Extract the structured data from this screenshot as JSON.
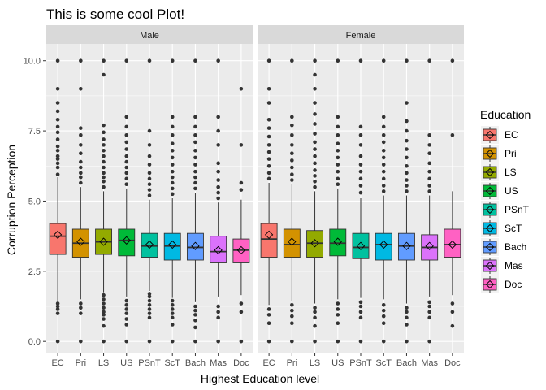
{
  "chart_data": {
    "type": "boxplot",
    "title": "This is some cool Plot!",
    "xlabel": "Highest Education level",
    "ylabel": "Corruption Perception",
    "ylim": [
      -0.4,
      10.6
    ],
    "yticks": [
      "0.0",
      "2.5",
      "5.0",
      "7.5",
      "10.0"
    ],
    "ytick_values": [
      0,
      2.5,
      5,
      7.5,
      10
    ],
    "categories": [
      "EC",
      "Pri",
      "LS",
      "US",
      "PSnT",
      "ScT",
      "Bach",
      "Mas",
      "Doc"
    ],
    "legend": {
      "title": "Education",
      "position": "right",
      "entries": [
        "EC",
        "Pri",
        "LS",
        "US",
        "PSnT",
        "ScT",
        "Bach",
        "Mas",
        "Doc"
      ]
    },
    "colors": [
      "#F8766D",
      "#D39200",
      "#93AA00",
      "#00BA38",
      "#00C19F",
      "#00B9E3",
      "#619CFF",
      "#DB72FB",
      "#FF61C3"
    ],
    "grid": true,
    "panels": [
      {
        "name": "Male",
        "boxes": [
          {
            "category": "EC",
            "q1": 3.1,
            "median": 3.75,
            "q3": 4.2,
            "whisker_low": 1.4,
            "whisker_high": 5.85,
            "mean": 3.8,
            "outliers": [
              0.0,
              1.0,
              1.15,
              1.25,
              1.35,
              5.95,
              6.2,
              6.35,
              6.5,
              6.6,
              6.8,
              6.95,
              7.2,
              7.45,
              7.65,
              7.9,
              8.2,
              8.5,
              9.0,
              10.0
            ]
          },
          {
            "category": "Pri",
            "q1": 3.0,
            "median": 3.5,
            "q3": 4.0,
            "whisker_low": 1.5,
            "whisker_high": 5.5,
            "mean": 3.55,
            "outliers": [
              0.0,
              1.0,
              1.2,
              1.35,
              5.65,
              5.85,
              6.0,
              6.2,
              6.4,
              6.7,
              7.0,
              7.35,
              7.6,
              9.0,
              10.0
            ]
          },
          {
            "category": "LS",
            "q1": 3.1,
            "median": 3.55,
            "q3": 4.0,
            "whisker_low": 1.75,
            "whisker_high": 5.35,
            "mean": 3.55,
            "outliers": [
              0.0,
              0.55,
              0.8,
              0.95,
              1.05,
              1.2,
              1.35,
              1.5,
              1.65,
              5.5,
              5.7,
              5.85,
              6.0,
              6.2,
              6.4,
              6.6,
              6.8,
              7.0,
              7.2,
              7.45,
              7.7,
              9.5,
              10.0
            ]
          },
          {
            "category": "US",
            "q1": 3.05,
            "median": 3.6,
            "q3": 4.0,
            "whisker_low": 1.6,
            "whisker_high": 5.45,
            "mean": 3.6,
            "outliers": [
              0.0,
              0.6,
              0.8,
              1.0,
              1.15,
              1.3,
              1.45,
              5.6,
              5.8,
              6.0,
              6.2,
              6.4,
              6.6,
              6.85,
              7.1,
              7.35,
              7.65,
              8.0,
              10.0
            ]
          },
          {
            "category": "PSnT",
            "q1": 3.0,
            "median": 3.4,
            "q3": 3.85,
            "whisker_low": 1.8,
            "whisker_high": 5.05,
            "mean": 3.45,
            "outliers": [
              0.0,
              0.85,
              1.0,
              1.15,
              1.3,
              1.45,
              1.6,
              1.7,
              5.2,
              5.4,
              5.6,
              5.8,
              6.0,
              6.3,
              6.6,
              7.0,
              7.5,
              10.0
            ]
          },
          {
            "category": "ScT",
            "q1": 2.9,
            "median": 3.4,
            "q3": 3.85,
            "whisker_low": 1.55,
            "whisker_high": 5.1,
            "mean": 3.45,
            "outliers": [
              0.0,
              0.6,
              0.85,
              1.0,
              1.15,
              1.3,
              1.45,
              5.25,
              5.45,
              5.65,
              5.85,
              6.05,
              6.3,
              6.55,
              6.8,
              7.05,
              7.35,
              7.65,
              8.0,
              10.0
            ]
          },
          {
            "category": "Bach",
            "q1": 2.9,
            "median": 3.35,
            "q3": 3.85,
            "whisker_low": 1.4,
            "whisker_high": 5.3,
            "mean": 3.4,
            "outliers": [
              0.0,
              0.5,
              0.75,
              0.95,
              1.1,
              1.25,
              5.45,
              5.65,
              5.85,
              6.05,
              6.3,
              6.55,
              6.8,
              7.1,
              7.35,
              7.65,
              8.0,
              10.0
            ]
          },
          {
            "category": "Mas",
            "q1": 2.8,
            "median": 3.2,
            "q3": 3.75,
            "whisker_low": 1.6,
            "whisker_high": 4.95,
            "mean": 3.25,
            "outliers": [
              0.0,
              0.85,
              1.05,
              1.25,
              5.1,
              5.3,
              5.5,
              5.75,
              6.05,
              6.35,
              7.0,
              7.5,
              8.0,
              10.0
            ]
          },
          {
            "category": "Doc",
            "q1": 2.8,
            "median": 3.25,
            "q3": 3.65,
            "whisker_low": 1.65,
            "whisker_high": 5.05,
            "mean": 3.25,
            "outliers": [
              0.0,
              1.05,
              1.35,
              5.4,
              5.65,
              7.0,
              9.0
            ]
          }
        ]
      },
      {
        "name": "Female",
        "boxes": [
          {
            "category": "EC",
            "q1": 3.0,
            "median": 3.65,
            "q3": 4.2,
            "whisker_low": 1.3,
            "whisker_high": 5.65,
            "mean": 3.8,
            "outliers": [
              0.0,
              0.65,
              0.95,
              1.15,
              5.8,
              6.0,
              6.25,
              6.5,
              6.75,
              7.0,
              7.3,
              7.6,
              7.9,
              8.5,
              9.0,
              10.0
            ]
          },
          {
            "category": "Pri",
            "q1": 3.0,
            "median": 3.45,
            "q3": 4.0,
            "whisker_low": 1.45,
            "whisker_high": 5.6,
            "mean": 3.55,
            "outliers": [
              0.0,
              0.65,
              0.9,
              1.1,
              1.3,
              5.75,
              5.95,
              6.2,
              6.45,
              6.7,
              7.0,
              7.35,
              7.7,
              8.0,
              10.0
            ]
          },
          {
            "category": "LS",
            "q1": 3.0,
            "median": 3.5,
            "q3": 3.95,
            "whisker_low": 1.35,
            "whisker_high": 5.35,
            "mean": 3.5,
            "outliers": [
              0.0,
              0.55,
              0.85,
              1.05,
              1.2,
              5.5,
              5.7,
              5.9,
              6.1,
              6.35,
              6.6,
              6.85,
              7.1,
              7.4,
              7.75,
              8.1,
              8.5,
              9.0,
              9.5,
              10.0
            ]
          },
          {
            "category": "US",
            "q1": 3.05,
            "median": 3.5,
            "q3": 4.0,
            "whisker_low": 1.5,
            "whisker_high": 5.45,
            "mean": 3.55,
            "outliers": [
              0.0,
              0.65,
              0.95,
              1.15,
              1.35,
              5.6,
              5.8,
              6.05,
              6.3,
              6.55,
              6.8,
              7.05,
              7.35,
              7.65,
              8.0,
              10.0
            ]
          },
          {
            "category": "PSnT",
            "q1": 2.95,
            "median": 3.35,
            "q3": 3.85,
            "whisker_low": 1.55,
            "whisker_high": 5.1,
            "mean": 3.4,
            "outliers": [
              0.0,
              0.85,
              1.05,
              1.25,
              1.4,
              5.3,
              5.55,
              5.8,
              6.05,
              6.3,
              6.6,
              7.0,
              7.35,
              7.65,
              10.0
            ]
          },
          {
            "category": "ScT",
            "q1": 2.9,
            "median": 3.45,
            "q3": 3.85,
            "whisker_low": 1.5,
            "whisker_high": 5.2,
            "mean": 3.45,
            "outliers": [
              0.0,
              0.65,
              0.9,
              1.1,
              1.3,
              5.35,
              5.55,
              5.8,
              6.05,
              6.3,
              6.55,
              6.8,
              7.1,
              7.35,
              7.65,
              8.0,
              10.0
            ]
          },
          {
            "category": "Bach",
            "q1": 2.9,
            "median": 3.4,
            "q3": 3.85,
            "whisker_low": 1.35,
            "whisker_high": 5.2,
            "mean": 3.4,
            "outliers": [
              0.0,
              0.6,
              0.85,
              1.05,
              1.2,
              5.35,
              5.55,
              5.75,
              6.0,
              6.25,
              6.55,
              6.85,
              7.15,
              7.5,
              7.85,
              8.5,
              10.0
            ]
          },
          {
            "category": "Mas",
            "q1": 2.9,
            "median": 3.35,
            "q3": 3.8,
            "whisker_low": 1.6,
            "whisker_high": 5.2,
            "mean": 3.4,
            "outliers": [
              0.0,
              0.85,
              1.05,
              1.25,
              1.4,
              5.35,
              5.55,
              5.8,
              6.05,
              6.35,
              6.7,
              7.0,
              7.35,
              10.0
            ]
          },
          {
            "category": "Doc",
            "q1": 3.0,
            "median": 3.45,
            "q3": 4.0,
            "whisker_low": 1.65,
            "whisker_high": 5.35,
            "mean": 3.45,
            "outliers": [
              0.55,
              1.05,
              1.35,
              7.35,
              10.0
            ]
          }
        ]
      }
    ]
  }
}
